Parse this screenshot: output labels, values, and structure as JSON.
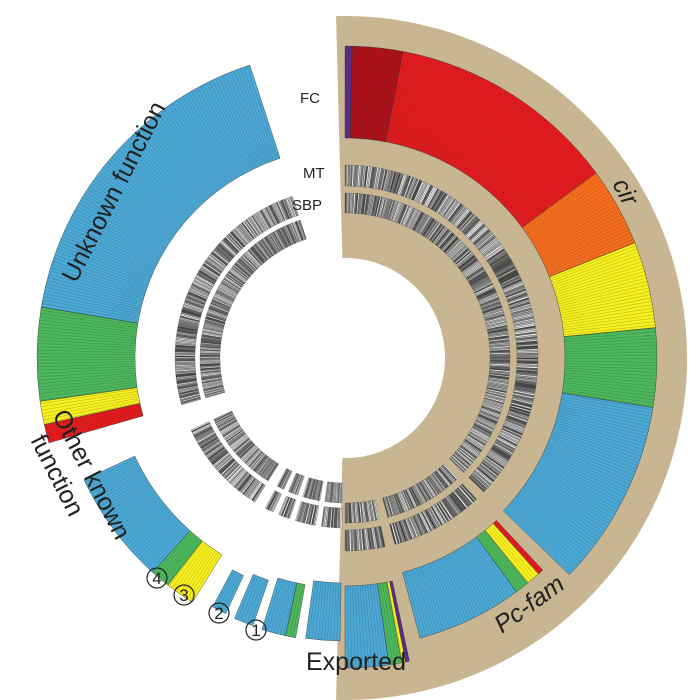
{
  "labels": {
    "fc": "FC",
    "mt": "MT",
    "sbp": "SBP",
    "cir": "cir",
    "pcfam": "Pc-fam",
    "exported": "Exported",
    "other_line1": "Other known",
    "other_line2": "function",
    "unknown": "Unknown function",
    "n1": "1",
    "n2": "2",
    "n3": "3",
    "n4": "4"
  },
  "colors": {
    "background_band": "#c8b693",
    "red": "#e41a1c",
    "dark_red": "#b0101a",
    "orange": "#f76d1c",
    "yellow": "#f7f01d",
    "green": "#4cb85c",
    "blue": "#4aa9d6",
    "purple": "#5a2d8a"
  },
  "groups": [
    {
      "id": "cir",
      "composition": [
        [
          "purple",
          0.01
        ],
        [
          "dark_red",
          0.07
        ],
        [
          "red",
          0.32
        ],
        [
          "orange",
          0.11
        ],
        [
          "yellow",
          0.12
        ],
        [
          "green",
          0.11
        ],
        [
          "blue",
          0.26
        ]
      ]
    },
    {
      "id": "pcfam",
      "composition": [
        [
          "red",
          0.04
        ],
        [
          "yellow",
          0.1
        ],
        [
          "green",
          0.1
        ],
        [
          "blue",
          0.76
        ]
      ]
    },
    {
      "id": "exported",
      "composition": [
        [
          "purple",
          0.06
        ],
        [
          "yellow",
          0.06
        ],
        [
          "green",
          0.2
        ],
        [
          "blue",
          0.68
        ]
      ]
    },
    {
      "id": "1",
      "composition": [
        [
          "blue",
          1.0
        ]
      ]
    },
    {
      "id": "2",
      "composition": [
        [
          "green",
          0.3
        ],
        [
          "blue",
          0.7
        ]
      ]
    },
    {
      "id": "3",
      "composition": [
        [
          "blue",
          1.0
        ]
      ]
    },
    {
      "id": "4",
      "composition": [
        [
          "blue",
          1.0
        ]
      ]
    },
    {
      "id": "other",
      "composition": [
        [
          "yellow",
          0.18
        ],
        [
          "green",
          0.12
        ],
        [
          "blue",
          0.7
        ]
      ]
    },
    {
      "id": "unknown",
      "composition": [
        [
          "red",
          0.04
        ],
        [
          "yellow",
          0.05
        ],
        [
          "green",
          0.2
        ],
        [
          "blue",
          0.71
        ]
      ]
    }
  ]
}
